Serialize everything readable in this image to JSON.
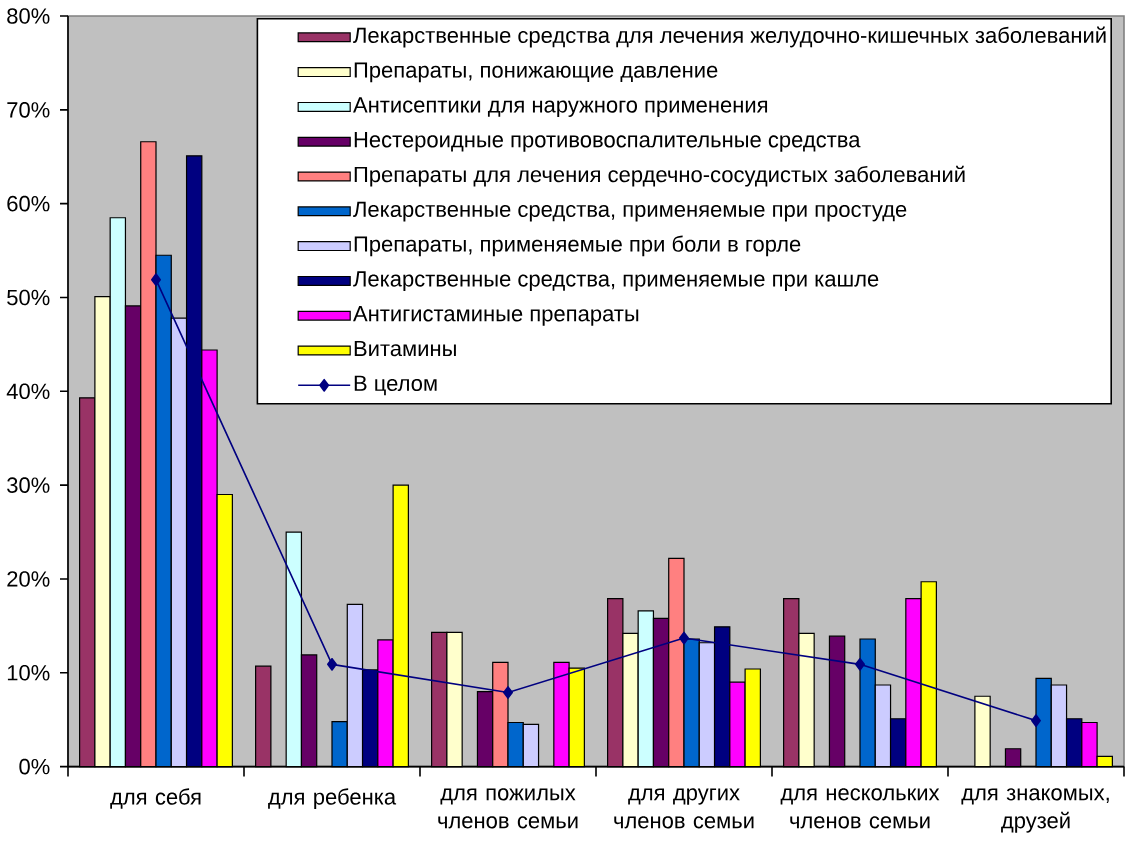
{
  "chart_data": {
    "type": "bar",
    "categories": [
      "для себя",
      "для ребенка",
      "для пожилых членов семьи",
      "для других членов семьи",
      "для нескольких членов семьи",
      "для знакомых, друзей"
    ],
    "series": [
      {
        "name": "Лекарственные средства для лечения желудочно-кишечных заболеваний",
        "color": "#993366",
        "values": [
          39.3,
          10.7,
          14.3,
          17.9,
          17.9,
          null
        ]
      },
      {
        "name": "Препараты, понижающие давление",
        "color": "#FFFFCC",
        "values": [
          50.1,
          null,
          14.3,
          14.2,
          14.2,
          7.5
        ]
      },
      {
        "name": "Антисептики для наружного применения",
        "color": "#CCFFFF",
        "values": [
          58.5,
          25.0,
          null,
          16.6,
          null,
          null
        ]
      },
      {
        "name": "Нестероидные противовоспалительные средства",
        "color": "#660066",
        "values": [
          49.1,
          11.9,
          8.0,
          15.8,
          13.9,
          1.9
        ]
      },
      {
        "name": "Препараты для лечения сердечно-сосудистых заболеваний",
        "color": "#FF8080",
        "values": [
          66.6,
          null,
          11.1,
          22.2,
          null,
          null
        ]
      },
      {
        "name": "Лекарственные средства, применяемые при простуде",
        "color": "#0066CC",
        "values": [
          54.5,
          4.8,
          4.7,
          13.6,
          13.6,
          9.4
        ]
      },
      {
        "name": "Препараты, применяемые при боли в горле",
        "color": "#CCCCFF",
        "values": [
          47.8,
          17.3,
          4.5,
          13.2,
          8.7,
          8.7
        ]
      },
      {
        "name": "Лекарственные средства, применяемые при кашле",
        "color": "#000080",
        "values": [
          65.1,
          10.3,
          null,
          14.9,
          5.1,
          5.1
        ]
      },
      {
        "name": "Антигистаминые препараты",
        "color": "#FF00FF",
        "values": [
          44.4,
          13.5,
          11.1,
          9.0,
          17.9,
          4.7
        ]
      },
      {
        "name": "Витамины",
        "color": "#FFFF00",
        "values": [
          29.0,
          30.0,
          10.5,
          10.4,
          19.7,
          1.1
        ]
      },
      {
        "name": "В целом",
        "type": "line",
        "color": "#000080",
        "marker": "diamond",
        "line_style": "solid",
        "values": [
          51.9,
          10.9,
          7.9,
          13.7,
          10.9,
          4.9
        ]
      }
    ],
    "ylim": [
      0,
      80
    ],
    "yticks": [
      {
        "value": 0,
        "label": "0%"
      },
      {
        "value": 10,
        "label": "10%"
      },
      {
        "value": 20,
        "label": "20%"
      },
      {
        "value": 30,
        "label": "30%"
      },
      {
        "value": 40,
        "label": "40%"
      },
      {
        "value": 50,
        "label": "50%"
      },
      {
        "value": 60,
        "label": "60%"
      },
      {
        "value": 70,
        "label": "70%"
      },
      {
        "value": 80,
        "label": "80%"
      }
    ],
    "legend": "top right"
  }
}
